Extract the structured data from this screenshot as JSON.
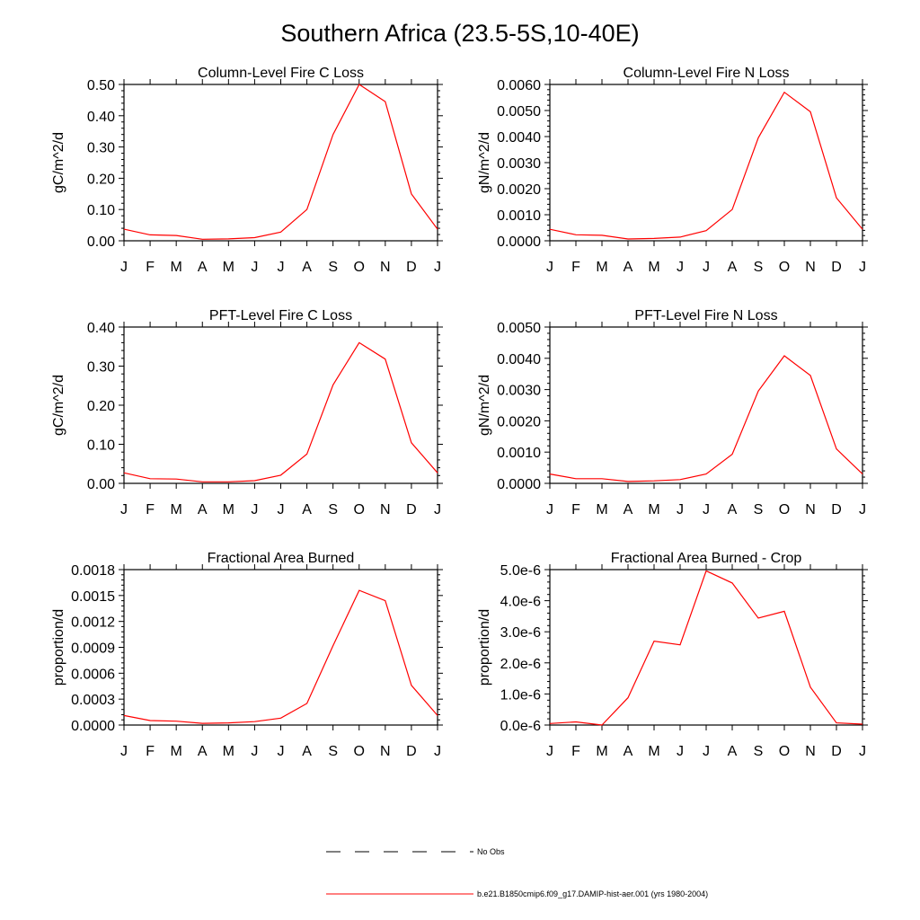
{
  "title": "Southern Africa (23.5-5S,10-40E)",
  "months": [
    "J",
    "F",
    "M",
    "A",
    "M",
    "J",
    "J",
    "A",
    "S",
    "O",
    "N",
    "D",
    "J"
  ],
  "line_color": "#ff0000",
  "legend": [
    {
      "label": "No Obs",
      "style": "dashed",
      "color": "#000000"
    },
    {
      "label": "b.e21.B1850cmip6.f09_g17.DAMIP-hist-aer.001 (yrs 1980-2004)",
      "style": "solid",
      "color": "#ff0000"
    }
  ],
  "chart_data": [
    {
      "type": "line",
      "title": "Column-Level Fire C Loss",
      "ylabel": "gC/m^2/d",
      "ylim": [
        0,
        0.5
      ],
      "yticks": [
        0,
        0.1,
        0.2,
        0.3,
        0.4,
        0.5
      ],
      "ytick_labels": [
        "0.00",
        "0.10",
        "0.20",
        "0.30",
        "0.40",
        "0.50"
      ],
      "categories": [
        "J",
        "F",
        "M",
        "A",
        "M",
        "J",
        "J",
        "A",
        "S",
        "O",
        "N",
        "D",
        "J"
      ],
      "values": [
        0.037,
        0.019,
        0.017,
        0.005,
        0.006,
        0.01,
        0.028,
        0.1,
        0.34,
        0.5,
        0.445,
        0.15,
        0.037
      ]
    },
    {
      "type": "line",
      "title": "Column-Level Fire N Loss",
      "ylabel": "gN/m^2/d",
      "ylim": [
        0,
        0.006
      ],
      "yticks": [
        0,
        0.001,
        0.002,
        0.003,
        0.004,
        0.005,
        0.006
      ],
      "ytick_labels": [
        "0.0000",
        "0.0010",
        "0.0020",
        "0.0030",
        "0.0040",
        "0.0050",
        "0.0060"
      ],
      "categories": [
        "J",
        "F",
        "M",
        "A",
        "M",
        "J",
        "J",
        "A",
        "S",
        "O",
        "N",
        "D",
        "J"
      ],
      "values": [
        0.00044,
        0.00023,
        0.00021,
        7e-05,
        9e-05,
        0.00014,
        0.00039,
        0.0012,
        0.00395,
        0.0057,
        0.00495,
        0.00165,
        0.00044
      ]
    },
    {
      "type": "line",
      "title": "PFT-Level Fire C Loss",
      "ylabel": "gC/m^2/d",
      "ylim": [
        0,
        0.4
      ],
      "yticks": [
        0,
        0.1,
        0.2,
        0.3,
        0.4
      ],
      "ytick_labels": [
        "0.00",
        "0.10",
        "0.20",
        "0.30",
        "0.40"
      ],
      "categories": [
        "J",
        "F",
        "M",
        "A",
        "M",
        "J",
        "J",
        "A",
        "S",
        "O",
        "N",
        "D",
        "J"
      ],
      "values": [
        0.027,
        0.012,
        0.011,
        0.004,
        0.004,
        0.007,
        0.021,
        0.075,
        0.252,
        0.36,
        0.318,
        0.104,
        0.027
      ]
    },
    {
      "type": "line",
      "title": "PFT-Level Fire N Loss",
      "ylabel": "gN/m^2/d",
      "ylim": [
        0,
        0.005
      ],
      "yticks": [
        0,
        0.001,
        0.002,
        0.003,
        0.004,
        0.005
      ],
      "ytick_labels": [
        "0.0000",
        "0.0010",
        "0.0020",
        "0.0030",
        "0.0040",
        "0.0050"
      ],
      "categories": [
        "J",
        "F",
        "M",
        "A",
        "M",
        "J",
        "J",
        "A",
        "S",
        "O",
        "N",
        "D",
        "J"
      ],
      "values": [
        0.0003,
        0.00015,
        0.00015,
        6e-05,
        8e-05,
        0.00012,
        0.0003,
        0.00093,
        0.00295,
        0.00408,
        0.00345,
        0.0011,
        0.0003
      ]
    },
    {
      "type": "line",
      "title": "Fractional Area Burned",
      "ylabel": "proportion/d",
      "ylim": [
        0,
        0.0018
      ],
      "yticks": [
        0,
        0.0003,
        0.0006,
        0.0009,
        0.0012,
        0.0015,
        0.0018
      ],
      "ytick_labels": [
        "0.0000",
        "0.0003",
        "0.0006",
        "0.0009",
        "0.0012",
        "0.0015",
        "0.0018"
      ],
      "categories": [
        "J",
        "F",
        "M",
        "A",
        "M",
        "J",
        "J",
        "A",
        "S",
        "O",
        "N",
        "D",
        "J"
      ],
      "values": [
        0.00011,
        5.2e-05,
        4.5e-05,
        2e-05,
        2.5e-05,
        4e-05,
        8e-05,
        0.00025,
        0.00092,
        0.00156,
        0.00144,
        0.00046,
        0.00011
      ]
    },
    {
      "type": "line",
      "title": "Fractional Area Burned - Crop",
      "ylabel": "proportion/d",
      "ylim": [
        0,
        5e-06
      ],
      "yticks": [
        0,
        1e-06,
        2e-06,
        3e-06,
        4e-06,
        5e-06
      ],
      "ytick_labels": [
        "0.0e-6",
        "1.0e-6",
        "2.0e-6",
        "3.0e-6",
        "4.0e-6",
        "5.0e-6"
      ],
      "categories": [
        "J",
        "F",
        "M",
        "A",
        "M",
        "J",
        "J",
        "A",
        "S",
        "O",
        "N",
        "D",
        "J"
      ],
      "values": [
        5e-08,
        1e-07,
        0.0,
        8.8e-07,
        2.7e-06,
        2.58e-06,
        4.96e-06,
        4.57e-06,
        3.44e-06,
        3.66e-06,
        1.22e-06,
        7e-08,
        3e-08
      ]
    }
  ]
}
